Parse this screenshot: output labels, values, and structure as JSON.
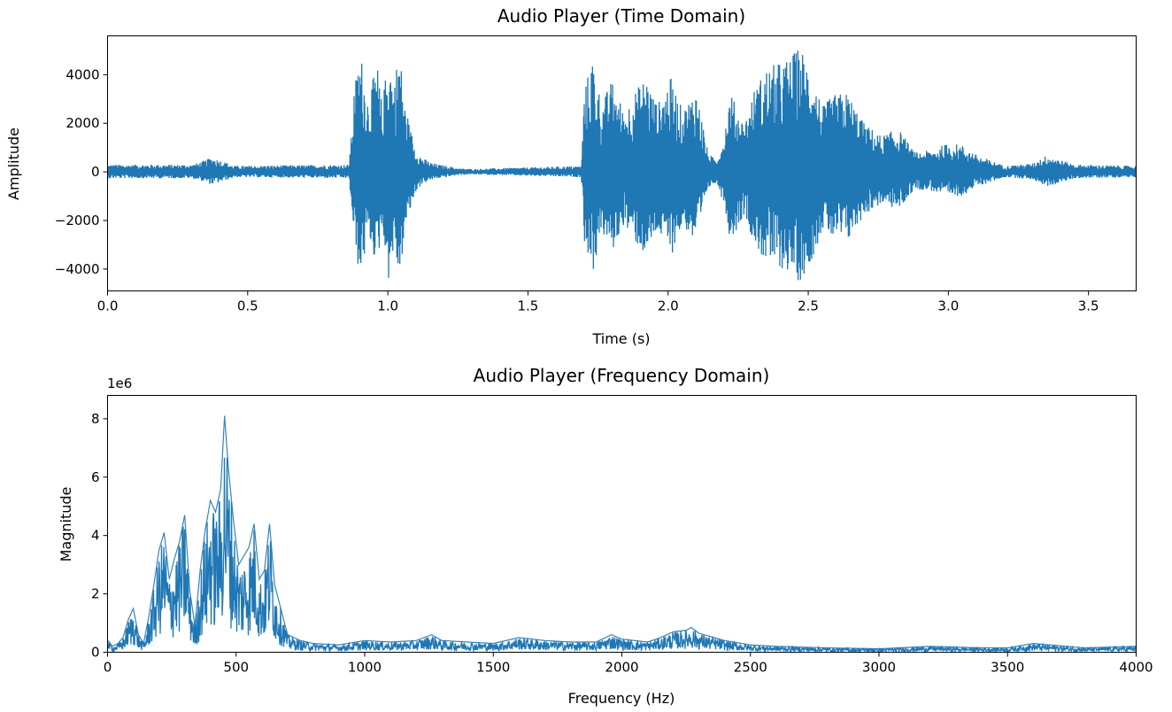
{
  "chart_data": [
    {
      "type": "line",
      "title": "Audio Player (Time Domain)",
      "xlabel": "Time (s)",
      "ylabel": "Amplitude",
      "xlim": [
        0,
        3.67
      ],
      "ylim": [
        -4900,
        5600
      ],
      "xticks": [
        0.0,
        0.5,
        1.0,
        1.5,
        2.0,
        2.5,
        3.0,
        3.5
      ],
      "xticklabels": [
        "0.0",
        "0.5",
        "1.0",
        "1.5",
        "2.0",
        "2.5",
        "3.0",
        "3.5"
      ],
      "yticks": [
        -4000,
        -2000,
        0,
        2000,
        4000
      ],
      "yticklabels": [
        "−4000",
        "−2000",
        "0",
        "2000",
        "4000"
      ],
      "color": "#1f77b4",
      "grid": false,
      "series": [
        {
          "x": [
            0.0,
            0.3,
            0.33,
            0.37,
            0.41,
            0.45,
            0.86,
            0.88,
            0.9,
            0.93,
            0.96,
            0.98,
            1.0,
            1.02,
            1.04,
            1.06,
            1.08,
            1.1,
            1.12,
            1.15,
            1.18,
            1.21,
            1.25,
            1.3,
            1.69,
            1.7,
            1.73,
            1.76,
            1.8,
            1.84,
            1.88,
            1.92,
            1.96,
            2.01,
            2.05,
            2.1,
            2.14,
            2.17,
            2.2,
            2.22,
            2.27,
            2.31,
            2.35,
            2.39,
            2.43,
            2.47,
            2.51,
            2.55,
            2.59,
            2.64,
            2.7,
            2.76,
            2.82,
            2.88,
            2.94,
            3.0,
            3.05,
            3.1,
            3.2,
            3.3,
            3.35,
            3.4,
            3.45,
            3.67
          ],
          "y": [
            300,
            300,
            400,
            600,
            450,
            250,
            300,
            3500,
            5000,
            3000,
            4500,
            2500,
            5300,
            3500,
            5200,
            2800,
            1800,
            900,
            600,
            400,
            300,
            250,
            150,
            120,
            250,
            3300,
            4800,
            2800,
            3800,
            2500,
            3300,
            4000,
            2800,
            3900,
            2500,
            3500,
            800,
            500,
            1500,
            3300,
            2000,
            3500,
            4300,
            4500,
            4700,
            5200,
            4200,
            2700,
            3200,
            3300,
            2000,
            1500,
            1800,
            800,
            900,
            1200,
            1100,
            700,
            250,
            350,
            700,
            500,
            300,
            250
          ]
        }
      ]
    },
    {
      "type": "line",
      "title": "Audio Player (Frequency Domain)",
      "xlabel": "Frequency (Hz)",
      "ylabel": "Magnitude",
      "offset_label": "1e6",
      "xlim": [
        0,
        4000
      ],
      "ylim": [
        0,
        8.8
      ],
      "xticks": [
        0,
        500,
        1000,
        1500,
        2000,
        2500,
        3000,
        3500,
        4000
      ],
      "xticklabels": [
        "0",
        "500",
        "1000",
        "1500",
        "2000",
        "2500",
        "3000",
        "3500",
        "4000"
      ],
      "yticks": [
        0,
        2,
        4,
        6,
        8
      ],
      "yticklabels": [
        "0",
        "2",
        "4",
        "6",
        "8"
      ],
      "color": "#1f77b4",
      "grid": false,
      "series": [
        {
          "x": [
            0,
            20,
            40,
            60,
            80,
            100,
            120,
            140,
            160,
            180,
            200,
            220,
            240,
            260,
            280,
            300,
            320,
            340,
            360,
            380,
            400,
            420,
            440,
            455,
            470,
            490,
            510,
            530,
            550,
            570,
            590,
            610,
            630,
            650,
            700,
            750,
            800,
            900,
            1000,
            1100,
            1200,
            1260,
            1300,
            1400,
            1500,
            1600,
            1700,
            1800,
            1900,
            1960,
            2000,
            2100,
            2150,
            2200,
            2250,
            2270,
            2300,
            2400,
            2500,
            2600,
            2800,
            3000,
            3200,
            3400,
            3500,
            3600,
            3800,
            4000
          ],
          "y": [
            0.4,
            0.2,
            0.3,
            0.5,
            1.1,
            1.5,
            0.6,
            0.3,
            1.2,
            2.3,
            3.5,
            4.1,
            2.5,
            3.2,
            3.8,
            4.7,
            2.1,
            0.9,
            2.8,
            4.2,
            5.2,
            4.8,
            5.6,
            8.1,
            6.3,
            4.5,
            3.0,
            3.3,
            3.6,
            4.4,
            2.5,
            2.8,
            4.4,
            2.3,
            0.6,
            0.4,
            0.3,
            0.25,
            0.4,
            0.35,
            0.4,
            0.6,
            0.4,
            0.35,
            0.3,
            0.5,
            0.4,
            0.35,
            0.35,
            0.6,
            0.45,
            0.35,
            0.5,
            0.7,
            0.75,
            0.85,
            0.65,
            0.4,
            0.25,
            0.2,
            0.15,
            0.12,
            0.2,
            0.15,
            0.15,
            0.3,
            0.15,
            0.2
          ]
        }
      ]
    }
  ]
}
